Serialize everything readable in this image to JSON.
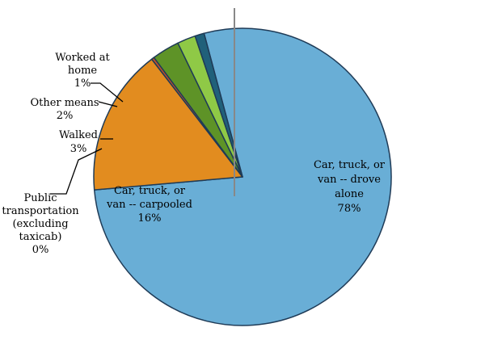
{
  "chart_data": {
    "type": "pie",
    "title": "",
    "slices": [
      {
        "label_lines": [
          "Car, truck, or",
          "van -- drove",
          "alone"
        ],
        "value_label": "78%",
        "value": 78,
        "color": "#69aed6"
      },
      {
        "label_lines": [
          "Car, truck, or",
          "van -- carpooled"
        ],
        "value_label": "16%",
        "value": 16,
        "color": "#e28c1f"
      },
      {
        "label_lines": [
          "Public",
          "transportation",
          "(excluding",
          "taxicab)"
        ],
        "value_label": "0%",
        "value": 0.3,
        "color": "#c0502a"
      },
      {
        "label_lines": [
          "Walked"
        ],
        "value_label": "3%",
        "value": 3,
        "color": "#5e9327"
      },
      {
        "label_lines": [
          "Other means"
        ],
        "value_label": "2%",
        "value": 2,
        "color": "#8fc946"
      },
      {
        "label_lines": [
          "Worked at",
          "home"
        ],
        "value_label": "1%",
        "value": 1,
        "color": "#20607a"
      }
    ]
  }
}
